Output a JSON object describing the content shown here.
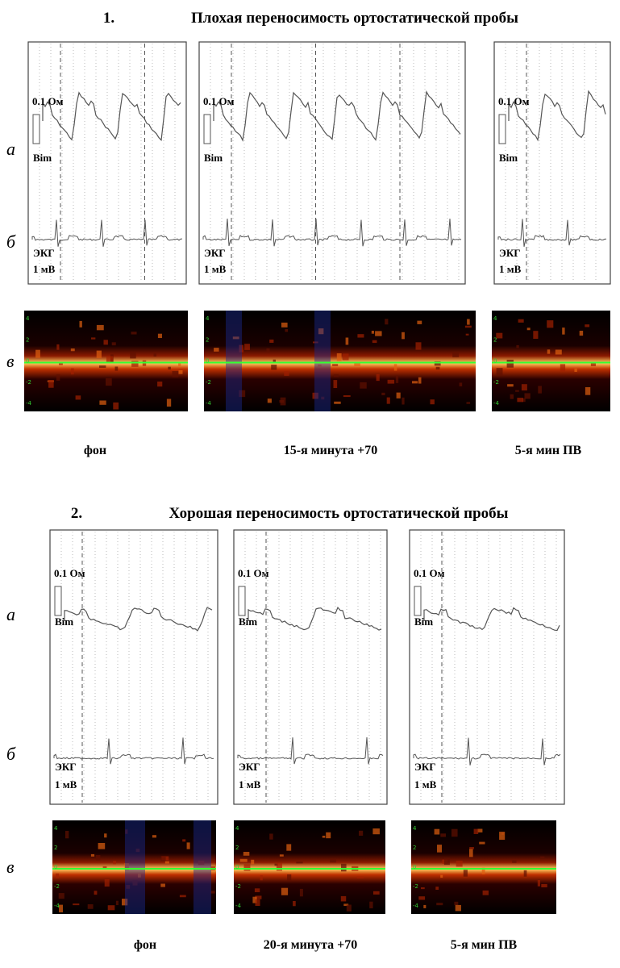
{
  "sections": [
    {
      "number": "1.",
      "title": "Плохая переносимость ортостатической пробы",
      "row_labels": [
        "а",
        "б",
        "в"
      ],
      "panels": [
        {
          "impedance_scale": "0.1 Ом",
          "impedance_label": "Bim",
          "ecg_label": "ЭКГ",
          "ecg_scale": "1 мВ",
          "caption": "фон"
        },
        {
          "impedance_scale": "0.1 Ом",
          "impedance_label": "Bim",
          "ecg_label": "ЭКГ",
          "ecg_scale": "1 мВ",
          "caption": "15-я минута +70"
        },
        {
          "impedance_scale": "0.1 Ом",
          "impedance_label": "Bim",
          "ecg_label": "ЭКГ",
          "ecg_scale": "1 мВ",
          "caption": "5-я мин ПВ"
        }
      ]
    },
    {
      "number": "2.",
      "title": "Хорошая переносимость ортостатической пробы",
      "row_labels": [
        "а",
        "б",
        "в"
      ],
      "panels": [
        {
          "impedance_scale": "0.1 Ом",
          "impedance_label": "Bim",
          "ecg_label": "ЭКГ",
          "ecg_scale": "1 мВ",
          "caption": "фон"
        },
        {
          "impedance_scale": "0.1 Ом",
          "impedance_label": "Bim",
          "ecg_label": "ЭКГ",
          "ecg_scale": "1 мВ",
          "caption": "20-я минута +70"
        },
        {
          "impedance_scale": "0.1 Ом",
          "impedance_label": "Bim",
          "ecg_label": "ЭКГ",
          "ecg_scale": "1 мВ",
          "caption": "5-я мин ПВ"
        }
      ]
    }
  ],
  "spectrogram_scale": [
    "4",
    "2",
    "0",
    "-2",
    "-4"
  ]
}
